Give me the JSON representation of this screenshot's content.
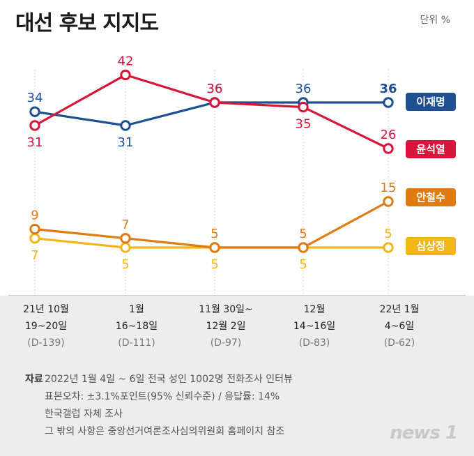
{
  "title": "대선 후보 지지도",
  "unit": "단위 %",
  "chart_data": {
    "type": "line",
    "categories": [
      {
        "line1": "21년 10월",
        "line2": "19~20일",
        "dday": "(D-139)"
      },
      {
        "line1": "1월",
        "line2": "16~18일",
        "dday": "(D-111)"
      },
      {
        "line1": "11월 30일~",
        "line2": "12월 2일",
        "dday": "(D-97)"
      },
      {
        "line1": "12월",
        "line2": "14~16일",
        "dday": "(D-83)"
      },
      {
        "line1": "22년 1월",
        "line2": "4~6일",
        "dday": "(D-62)"
      }
    ],
    "series": [
      {
        "name": "이재명",
        "values": [
          34,
          31,
          36,
          36,
          36
        ],
        "color": "#1d4f91"
      },
      {
        "name": "윤석열",
        "values": [
          31,
          42,
          36,
          35,
          26
        ],
        "color": "#d7143a"
      },
      {
        "name": "안철수",
        "values": [
          9,
          7,
          5,
          5,
          15
        ],
        "color": "#e07b12"
      },
      {
        "name": "심상정",
        "values": [
          7,
          5,
          5,
          5,
          5
        ],
        "color": "#f2b617"
      }
    ]
  },
  "source": {
    "label": "자료",
    "lines": [
      "2022년 1월 4일 ~ 6일 전국 성인 1002명 전화조사 인터뷰",
      "표본오차: ±3.1%포인트(95% 신뢰수준) / 응답률: 14%",
      "한국갤럽 자체 조사",
      "그 밖의 사항은 중앙선거여론조사심의위원회 홈페이지 참조"
    ]
  },
  "logo": "news 1"
}
